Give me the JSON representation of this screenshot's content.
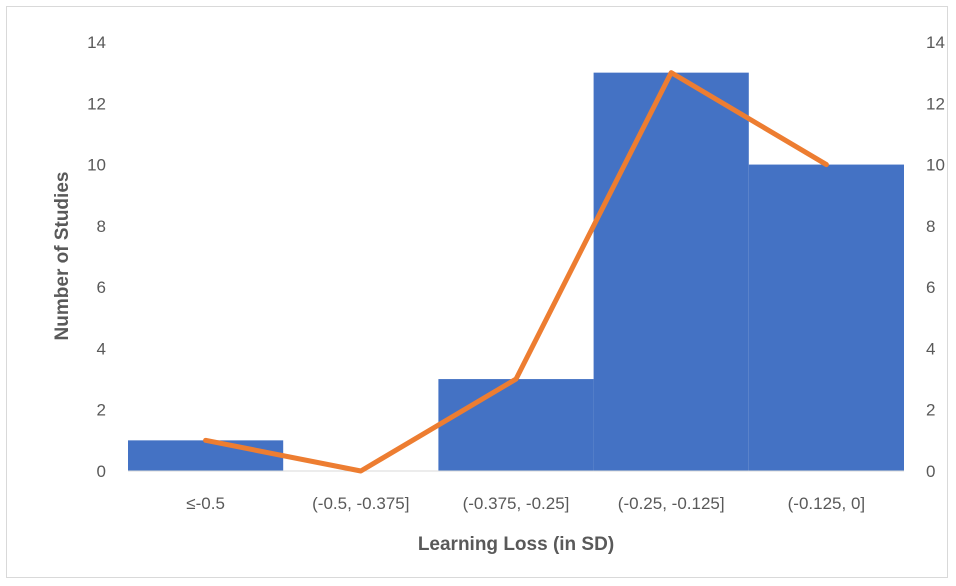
{
  "chart_data": {
    "type": "bar",
    "categories": [
      "≤-0.5",
      "(-0.5, -0.375]",
      "(-0.375, -0.25]",
      "(-0.25, -0.125]",
      "(-0.125, 0]"
    ],
    "series": [
      {
        "type": "bar",
        "values": [
          1,
          0,
          3,
          13,
          10
        ],
        "color": "#4472C4"
      },
      {
        "type": "line",
        "values": [
          1,
          0,
          3,
          13,
          10
        ],
        "color": "#ED7D31",
        "axis": "secondary"
      }
    ],
    "title": "",
    "xlabel": "Learning Loss (in SD)",
    "ylabel": "Number of Studies",
    "ylim": [
      0,
      14
    ],
    "y2lim": [
      0,
      14
    ],
    "yticks": [
      "0",
      "2",
      "4",
      "6",
      "8",
      "10",
      "12",
      "14"
    ],
    "y2ticks": [
      "0",
      "2",
      "4",
      "6",
      "8",
      "10",
      "12",
      "14"
    ],
    "grid": false,
    "legend": "none"
  }
}
